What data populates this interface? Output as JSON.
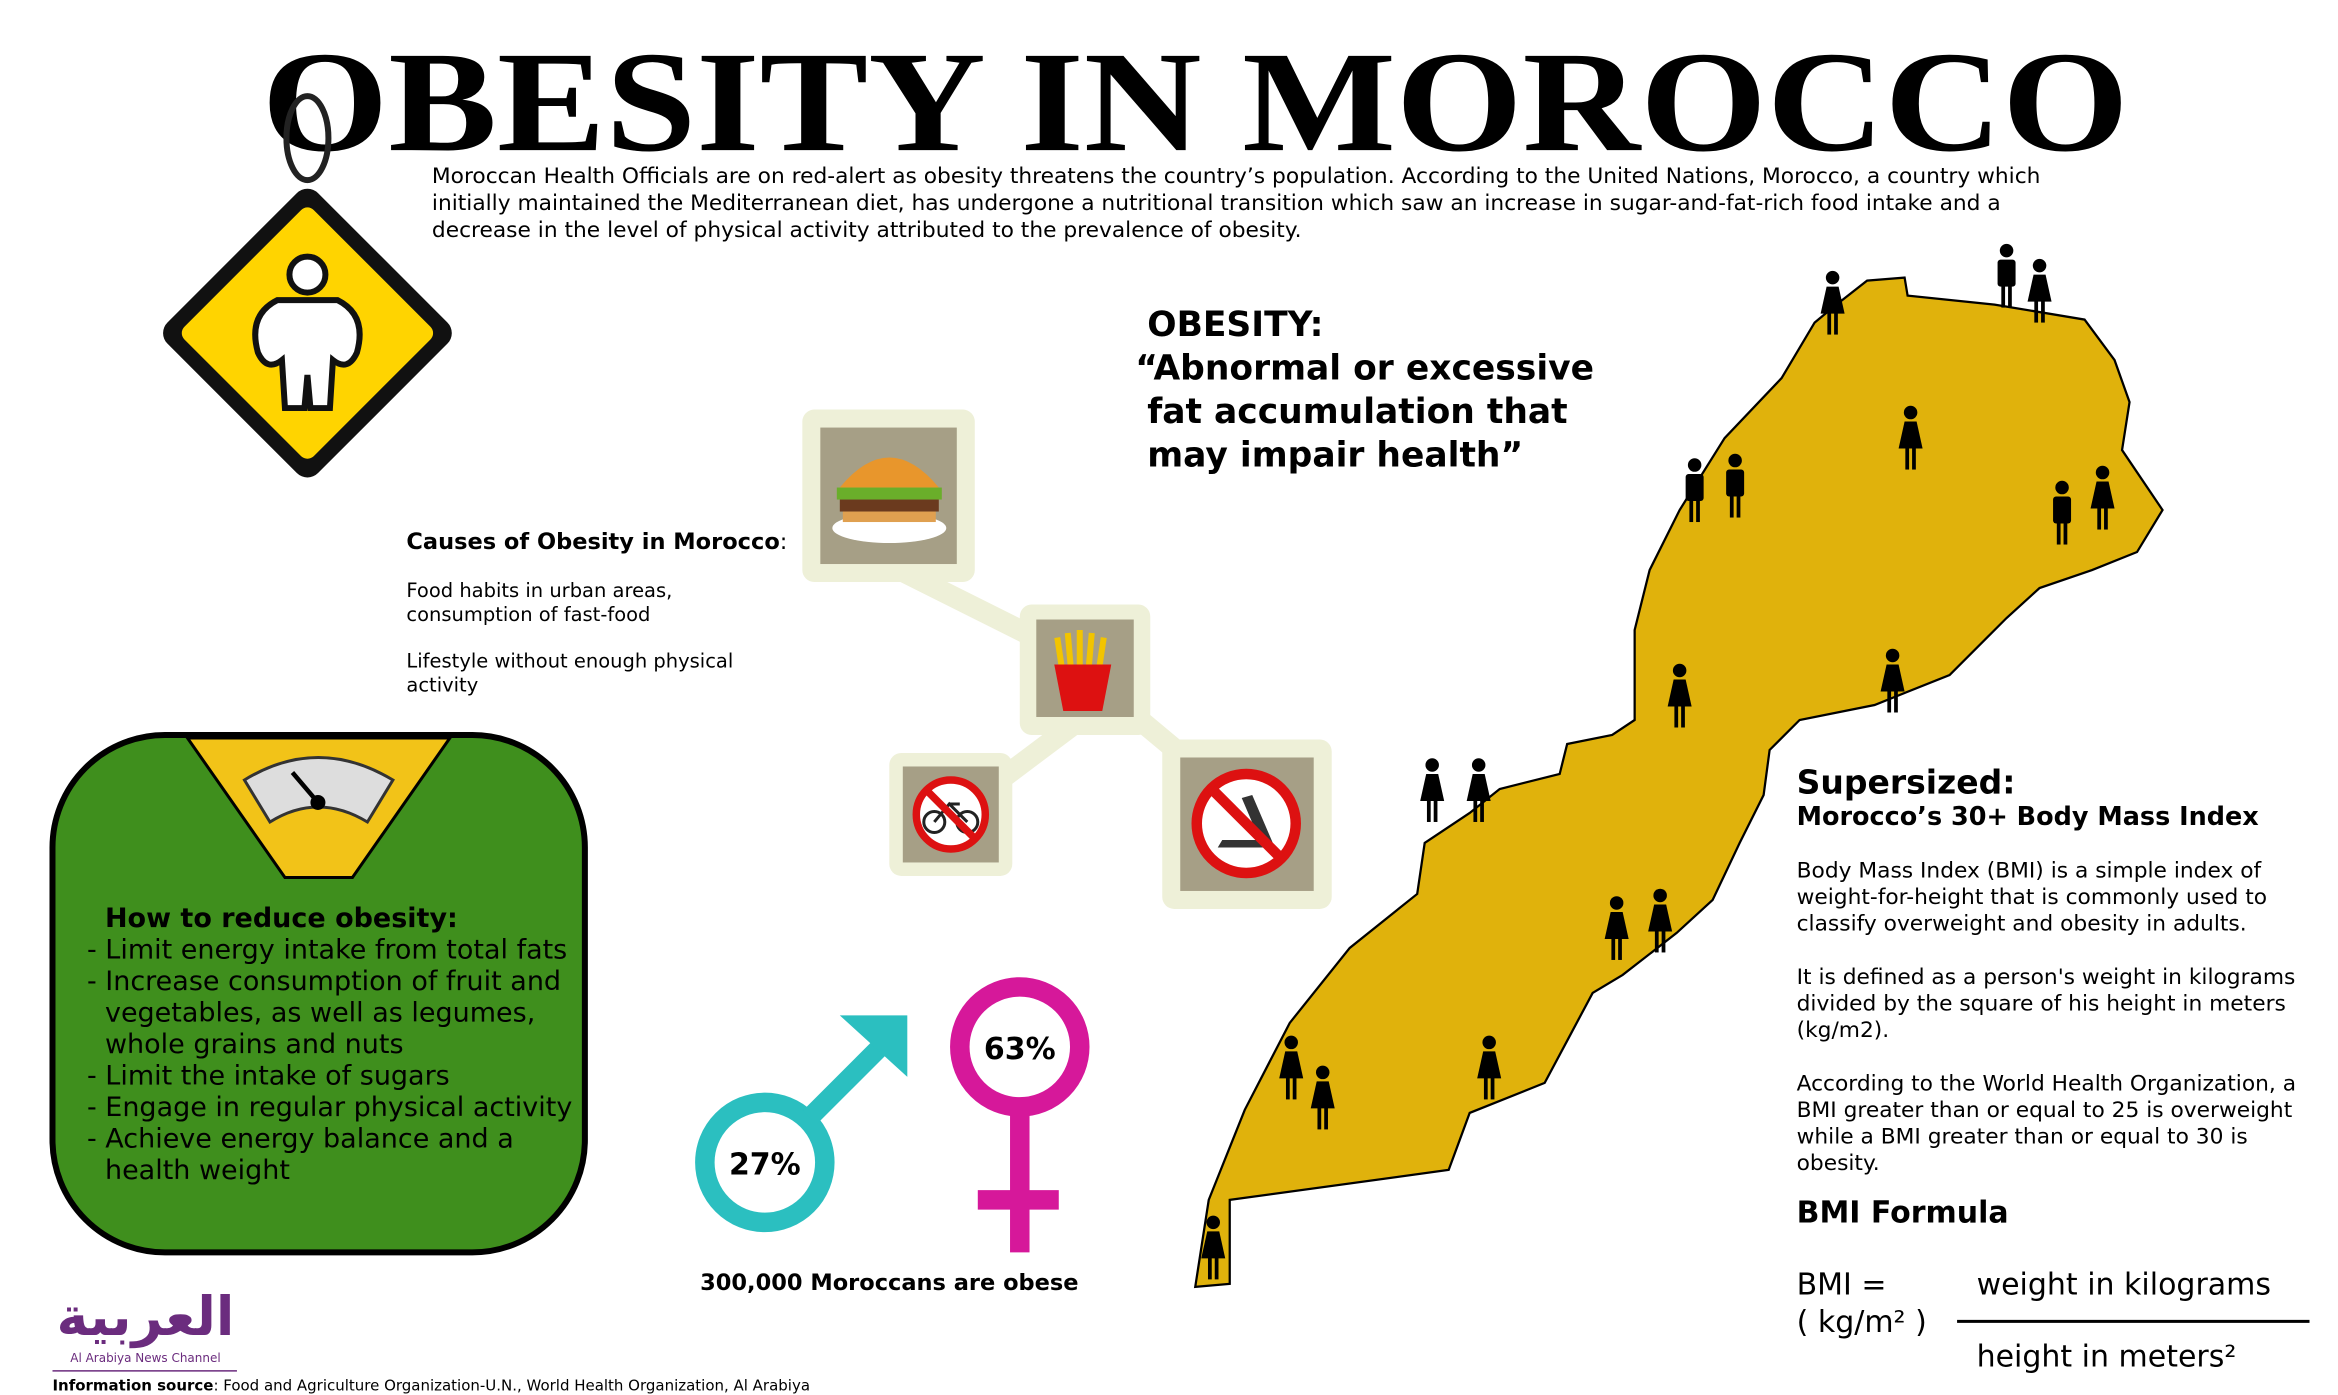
{
  "title": "OBESITY IN MOROCCO",
  "intro": [
    "Moroccan Health Officials are on red-alert as obesity threatens the country’s population. According to the United Nations, Morocco, a country which",
    "initially maintained the Mediterranean diet, has undergone a nutritional transition which saw an increase in sugar-and-fat-rich food intake and a",
    "decrease in the level of physical activity attributed to the prevalence of obesity."
  ],
  "definition": {
    "heading": "OBESITY:",
    "lines": [
      "“Abnormal or excessive",
      "fat accumulation that",
      "may impair health”"
    ]
  },
  "causes": {
    "heading": "Causes of Obesity in Morocco",
    "colon": ":",
    "items": [
      [
        "Food habits in urban areas,",
        "consumption of fast-food"
      ],
      [
        "Lifestyle without enough physical",
        "activity"
      ]
    ]
  },
  "reduce": {
    "heading": "How to reduce obesity:",
    "lines": [
      "- Limit energy intake from total fats",
      "- Increase consumption of fruit and",
      "vegetables, as well as legumes,",
      "whole grains and nuts",
      "- Limit the intake of sugars",
      "- Engage in regular physical activity",
      "- Achieve energy balance and a",
      "health weight"
    ]
  },
  "stats": {
    "male": "27%",
    "female": "63%",
    "caption": "300,000 Moroccans are obese"
  },
  "bmi": {
    "heading": "Supersized:",
    "subheading": "Morocco’s 30+ Body Mass Index",
    "paragraphs": [
      [
        "Body Mass Index (BMI) is a simple index of",
        "weight-for-height that is commonly used to",
        "classify overweight and obesity in adults."
      ],
      [
        "It is defined as a person's weight in kilograms",
        "divided by the square of his height in meters",
        "(kg/m2)."
      ],
      [
        "According to the World Health Organization, a",
        "BMI greater than or equal to 25 is overweight",
        "while a BMI greater than or equal to 30 is",
        "obesity."
      ]
    ],
    "formula_heading": "BMI Formula",
    "formula_left": [
      "BMI =",
      "( kg/m² )"
    ],
    "numerator": "weight in kilograms",
    "denominator": "height in meters²"
  },
  "logo": {
    "name": "العربية",
    "tagline": "Al Arabiya News Channel"
  },
  "source": {
    "label": "Information source",
    "text": ": Food and Agriculture Organization-U.N., World Health Organization, Al Arabiya"
  }
}
